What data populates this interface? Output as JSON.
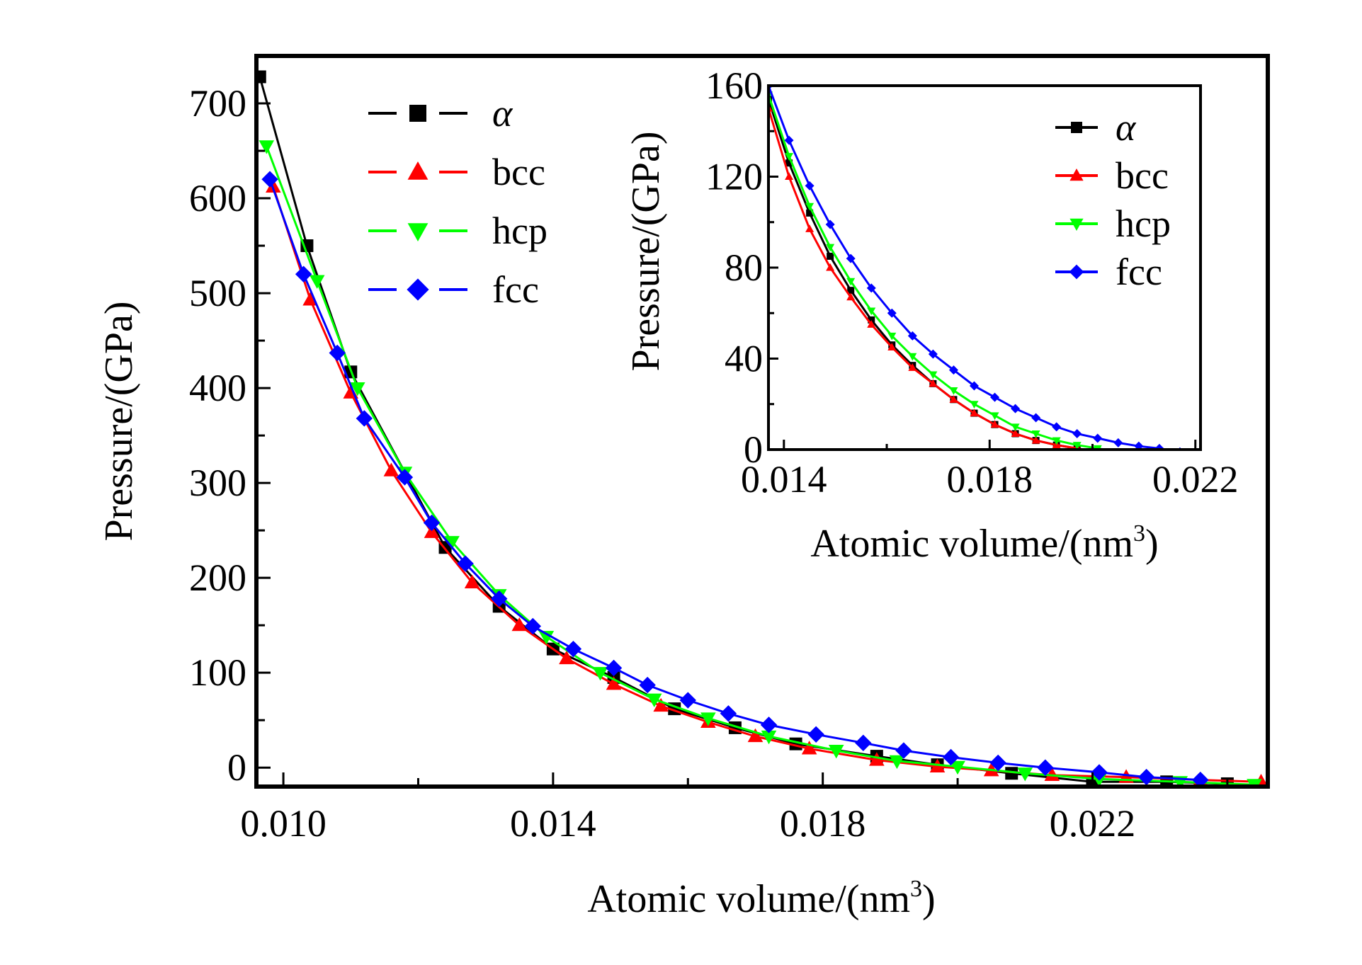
{
  "chart_data": [
    {
      "type": "line",
      "title": "",
      "xlabel": "Atomic volume/(nm",
      "xlabel_sup": "3",
      "xlabel_tail": ")",
      "ylabel": "Pressure/(GPa)",
      "xlim": [
        0.0096,
        0.0246
      ],
      "ylim": [
        -20,
        750
      ],
      "x_ticks": [
        0.01,
        0.014,
        0.018,
        0.022
      ],
      "x_tick_labels": [
        "0.010",
        "0.014",
        "0.018",
        "0.022"
      ],
      "y_ticks": [
        0,
        100,
        200,
        300,
        400,
        500,
        600,
        700
      ],
      "y_tick_labels": [
        "0",
        "100",
        "200",
        "300",
        "400",
        "500",
        "600",
        "700"
      ],
      "grid": false,
      "legend_position": "top-left",
      "series": [
        {
          "name": "α",
          "color": "#000000",
          "marker": "square",
          "x": [
            0.00965,
            0.01035,
            0.011,
            0.0124,
            0.0132,
            0.014,
            0.0149,
            0.0158,
            0.0167,
            0.0176,
            0.0188,
            0.0197,
            0.0208,
            0.022,
            0.0231,
            0.024
          ],
          "y": [
            728,
            550,
            417,
            232,
            170,
            125,
            95,
            62,
            42,
            25,
            12,
            3,
            -6,
            -15,
            -15,
            -17
          ]
        },
        {
          "name": "bcc",
          "color": "#ff0000",
          "marker": "triangle-up",
          "x": [
            0.00985,
            0.0104,
            0.011,
            0.0116,
            0.0122,
            0.0128,
            0.0135,
            0.0142,
            0.0149,
            0.0156,
            0.0163,
            0.017,
            0.0178,
            0.0188,
            0.0197,
            0.0205,
            0.0214,
            0.0225,
            0.0236,
            0.0245
          ],
          "y": [
            612,
            493,
            395,
            313,
            248,
            195,
            150,
            115,
            88,
            65,
            48,
            33,
            20,
            8,
            1,
            -3,
            -8,
            -10,
            -13,
            -15
          ]
        },
        {
          "name": "hcp",
          "color": "#00ff00",
          "marker": "triangle-down",
          "x": [
            0.00975,
            0.0105,
            0.0111,
            0.0118,
            0.0125,
            0.0132,
            0.0139,
            0.0147,
            0.0155,
            0.0163,
            0.0172,
            0.0182,
            0.0191,
            0.02,
            0.021,
            0.0221,
            0.0233,
            0.0244
          ],
          "y": [
            655,
            513,
            400,
            311,
            238,
            182,
            138,
            100,
            72,
            52,
            33,
            18,
            7,
            1,
            -6,
            -12,
            -15,
            -18
          ]
        },
        {
          "name": "fcc",
          "color": "#0000ff",
          "marker": "diamond",
          "x": [
            0.0098,
            0.0103,
            0.0108,
            0.0112,
            0.0118,
            0.0122,
            0.0127,
            0.0132,
            0.0137,
            0.0143,
            0.0149,
            0.0154,
            0.016,
            0.0166,
            0.0172,
            0.0179,
            0.0186,
            0.0192,
            0.0199,
            0.0206,
            0.0213,
            0.0221,
            0.0228,
            0.0236
          ],
          "y": [
            620,
            520,
            437,
            368,
            306,
            258,
            215,
            178,
            149,
            125,
            105,
            87,
            71,
            57,
            45,
            35,
            26,
            18,
            11,
            5,
            0,
            -5,
            -10,
            -13
          ]
        }
      ]
    },
    {
      "type": "line",
      "title": "",
      "xlabel": "Atomic volume/(nm",
      "xlabel_sup": "3",
      "xlabel_tail": ")",
      "ylabel": "Pressure/(GPa)",
      "xlim": [
        0.0137,
        0.0221
      ],
      "ylim": [
        0,
        160
      ],
      "x_ticks": [
        0.014,
        0.018,
        0.022
      ],
      "x_tick_labels": [
        "0.014",
        "0.018",
        "0.022"
      ],
      "y_ticks": [
        0,
        40,
        80,
        120,
        160
      ],
      "y_tick_labels": [
        "0",
        "40",
        "80",
        "120",
        "160"
      ],
      "grid": false,
      "legend_position": "top-right",
      "series": [
        {
          "name": "α",
          "color": "#000000",
          "marker": "square",
          "x": [
            0.0137,
            0.0141,
            0.0145,
            0.0149,
            0.0153,
            0.0157,
            0.0161,
            0.0165,
            0.0169,
            0.0173,
            0.0177,
            0.0181,
            0.0185,
            0.0189,
            0.0193,
            0.0197,
            0.0201
          ],
          "y": [
            154,
            126,
            104,
            85,
            70,
            57,
            46,
            37,
            29,
            22,
            16,
            11,
            7,
            4,
            2,
            0.5,
            -1
          ]
        },
        {
          "name": "bcc",
          "color": "#ff0000",
          "marker": "triangle-up",
          "x": [
            0.0137,
            0.0141,
            0.0145,
            0.0149,
            0.0153,
            0.0157,
            0.0161,
            0.0165,
            0.0169,
            0.0173,
            0.0177,
            0.0181,
            0.0185,
            0.0189,
            0.0193,
            0.0197,
            0.0201
          ],
          "y": [
            150,
            120,
            97,
            80,
            67,
            55,
            45,
            36,
            29,
            22,
            16,
            11,
            7,
            4,
            2,
            0.5,
            -1
          ]
        },
        {
          "name": "hcp",
          "color": "#00ff00",
          "marker": "triangle-down",
          "x": [
            0.0137,
            0.0141,
            0.0145,
            0.0149,
            0.0153,
            0.0157,
            0.0161,
            0.0165,
            0.0169,
            0.0173,
            0.0177,
            0.0181,
            0.0185,
            0.0189,
            0.0193,
            0.0197,
            0.0201,
            0.0205
          ],
          "y": [
            156,
            129,
            107,
            89,
            74,
            61,
            50,
            41,
            33,
            26,
            20,
            15,
            10,
            7,
            4,
            2,
            0.5,
            -1
          ]
        },
        {
          "name": "fcc",
          "color": "#0000ff",
          "marker": "diamond",
          "x": [
            0.0137,
            0.0141,
            0.0145,
            0.0149,
            0.0153,
            0.0157,
            0.0161,
            0.0165,
            0.0169,
            0.0173,
            0.0177,
            0.0181,
            0.0185,
            0.0189,
            0.0193,
            0.0197,
            0.0201,
            0.0205,
            0.0209,
            0.0213,
            0.0217
          ],
          "y": [
            160,
            136,
            116,
            99,
            84,
            71,
            60,
            50,
            42,
            35,
            28,
            23,
            18,
            14,
            10,
            7,
            5,
            3,
            1.5,
            0.5,
            -1
          ]
        }
      ]
    }
  ]
}
